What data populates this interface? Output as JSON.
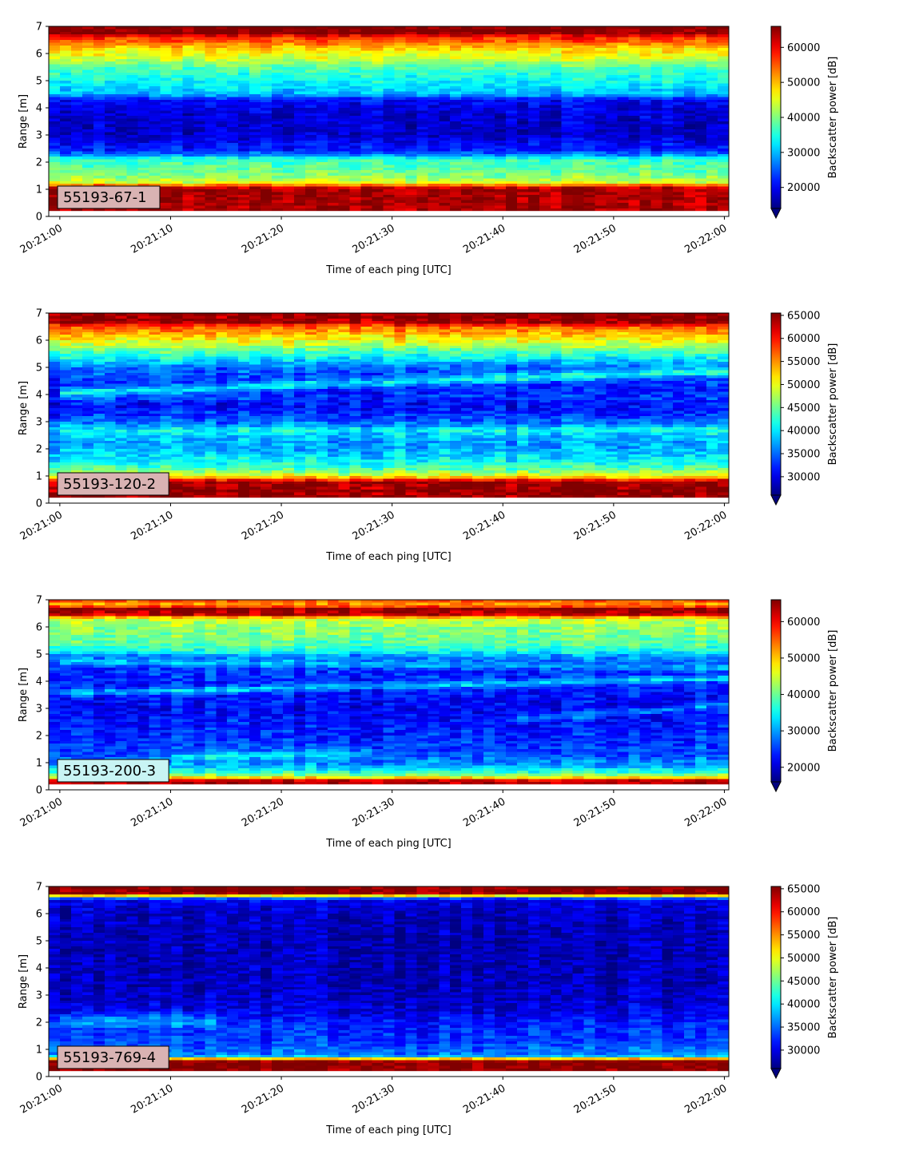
{
  "chart_data": [
    {
      "type": "heatmap",
      "label": "55193-67-1",
      "label_bg": "#d9b3b3",
      "xlabel": "Time of each ping [UTC]",
      "ylabel": "Range [m]",
      "colorbar_label": "Backscatter power [dB]",
      "x_ticks": [
        "20:21:00",
        "20:21:10",
        "20:21:20",
        "20:21:30",
        "20:21:40",
        "20:21:50",
        "20:22:00"
      ],
      "x_range_seconds": [
        -1,
        60.4
      ],
      "y_ticks": [
        0,
        1,
        2,
        3,
        4,
        5,
        6,
        7
      ],
      "ylim": [
        0,
        7
      ],
      "data_range_m": [
        0.2,
        7
      ],
      "vmin": 14000,
      "vmax": 66000,
      "cbar_ticks": [
        20000,
        30000,
        40000,
        50000,
        60000
      ],
      "colormap": "jet",
      "extend": "min",
      "noise": 2800,
      "profile": [
        [
          0.2,
          64000
        ],
        [
          1.0,
          64000
        ],
        [
          1.1,
          60000
        ],
        [
          1.2,
          46000
        ],
        [
          1.5,
          40000
        ],
        [
          1.8,
          38000
        ],
        [
          2.1,
          36000
        ],
        [
          2.25,
          28000
        ],
        [
          2.45,
          22000
        ],
        [
          3.0,
          18000
        ],
        [
          3.5,
          18000
        ],
        [
          4.0,
          19000
        ],
        [
          4.3,
          21000
        ],
        [
          4.5,
          30000
        ],
        [
          5.0,
          34000
        ],
        [
          5.5,
          38000
        ],
        [
          5.8,
          44000
        ],
        [
          6.0,
          46000
        ],
        [
          6.2,
          49000
        ],
        [
          6.4,
          54000
        ],
        [
          6.6,
          58000
        ],
        [
          6.75,
          66000
        ],
        [
          7.0,
          66000
        ]
      ],
      "streaks": []
    },
    {
      "type": "heatmap",
      "label": "55193-120-2",
      "label_bg": "#d9b3b3",
      "xlabel": "Time of each ping [UTC]",
      "ylabel": "Range [m]",
      "colorbar_label": "Backscatter power [dB]",
      "x_ticks": [
        "20:21:00",
        "20:21:10",
        "20:21:20",
        "20:21:30",
        "20:21:40",
        "20:21:50",
        "20:22:00"
      ],
      "x_range_seconds": [
        -1,
        60.4
      ],
      "y_ticks": [
        0,
        1,
        2,
        3,
        4,
        5,
        6,
        7
      ],
      "ylim": [
        0,
        7
      ],
      "data_range_m": [
        0.2,
        7
      ],
      "vmin": 26000,
      "vmax": 65500,
      "cbar_ticks": [
        30000,
        35000,
        40000,
        45000,
        50000,
        55000,
        60000,
        65000
      ],
      "colormap": "jet",
      "extend": "min",
      "noise": 2600,
      "profile": [
        [
          0.2,
          64500
        ],
        [
          0.8,
          64500
        ],
        [
          0.9,
          56000
        ],
        [
          1.0,
          50000
        ],
        [
          1.2,
          45000
        ],
        [
          1.5,
          41000
        ],
        [
          1.8,
          39000
        ],
        [
          2.1,
          37000
        ],
        [
          2.4,
          38000
        ],
        [
          2.7,
          41000
        ],
        [
          2.9,
          36000
        ],
        [
          3.2,
          33000
        ],
        [
          3.6,
          31000
        ],
        [
          3.9,
          33000
        ],
        [
          4.2,
          31500
        ],
        [
          4.6,
          33000
        ],
        [
          5.0,
          35000
        ],
        [
          5.3,
          40000
        ],
        [
          5.6,
          44000
        ],
        [
          5.9,
          49000
        ],
        [
          6.2,
          53000
        ],
        [
          6.5,
          57000
        ],
        [
          6.65,
          64000
        ],
        [
          7.0,
          65000
        ]
      ],
      "streaks": [
        [
          0,
          4.05,
          60,
          4.85,
          8000,
          0.12
        ]
      ]
    },
    {
      "type": "heatmap",
      "label": "55193-200-3",
      "label_bg": "#c8f4f4",
      "xlabel": "Time of each ping [UTC]",
      "ylabel": "Range [m]",
      "colorbar_label": "Backscatter power [dB]",
      "x_ticks": [
        "20:21:00",
        "20:21:10",
        "20:21:20",
        "20:21:30",
        "20:21:40",
        "20:21:50",
        "20:22:00"
      ],
      "x_range_seconds": [
        -1,
        60.4
      ],
      "y_ticks": [
        0,
        1,
        2,
        3,
        4,
        5,
        6,
        7
      ],
      "ylim": [
        0,
        7
      ],
      "data_range_m": [
        0.2,
        7
      ],
      "vmin": 16000,
      "vmax": 66000,
      "cbar_ticks": [
        20000,
        30000,
        40000,
        50000,
        60000
      ],
      "colormap": "jet",
      "extend": "min",
      "noise": 3200,
      "profile": [
        [
          0.2,
          64000
        ],
        [
          0.35,
          62000
        ],
        [
          0.45,
          48000
        ],
        [
          0.6,
          38000
        ],
        [
          0.9,
          30000
        ],
        [
          1.3,
          26000
        ],
        [
          2.0,
          24000
        ],
        [
          2.5,
          23000
        ],
        [
          3.0,
          22000
        ],
        [
          3.5,
          23000
        ],
        [
          4.0,
          24000
        ],
        [
          4.5,
          25000
        ],
        [
          4.95,
          30000
        ],
        [
          5.1,
          36000
        ],
        [
          5.5,
          40000
        ],
        [
          6.0,
          42000
        ],
        [
          6.3,
          45000
        ],
        [
          6.45,
          62000
        ],
        [
          6.65,
          65000
        ],
        [
          6.8,
          52000
        ],
        [
          7.0,
          56000
        ]
      ],
      "streaks": [
        [
          0,
          3.55,
          60,
          4.1,
          9000,
          0.08
        ],
        [
          10,
          1.2,
          28,
          1.35,
          7000,
          0.1
        ],
        [
          40,
          2.55,
          60,
          3.1,
          7000,
          0.08
        ],
        [
          0,
          4.7,
          60,
          4.5,
          5000,
          0.08
        ]
      ]
    },
    {
      "type": "heatmap",
      "label": "55193-769-4",
      "label_bg": "#d9b3b3",
      "xlabel": "Time of each ping [UTC]",
      "ylabel": "Range [m]",
      "colorbar_label": "Backscatter power [dB]",
      "x_ticks": [
        "20:21:00",
        "20:21:10",
        "20:21:20",
        "20:21:30",
        "20:21:40",
        "20:21:50",
        "20:22:00"
      ],
      "x_range_seconds": [
        -1,
        60.4
      ],
      "y_ticks": [
        0,
        1,
        2,
        3,
        4,
        5,
        6,
        7
      ],
      "ylim": [
        0,
        7
      ],
      "data_range_m": [
        0.2,
        7
      ],
      "vmin": 26000,
      "vmax": 65500,
      "cbar_ticks": [
        30000,
        35000,
        40000,
        45000,
        50000,
        55000,
        60000,
        65000
      ],
      "colormap": "jet",
      "extend": "min",
      "noise": 2200,
      "profile": [
        [
          0.2,
          65000
        ],
        [
          0.6,
          65000
        ],
        [
          0.7,
          40000
        ],
        [
          0.8,
          36000
        ],
        [
          1.2,
          33500
        ],
        [
          1.6,
          32500
        ],
        [
          2.0,
          32000
        ],
        [
          2.3,
          30000
        ],
        [
          3.0,
          28500
        ],
        [
          4.0,
          28000
        ],
        [
          5.0,
          28000
        ],
        [
          6.0,
          28500
        ],
        [
          6.5,
          30000
        ],
        [
          6.6,
          38000
        ],
        [
          6.7,
          64500
        ],
        [
          7.0,
          65500
        ]
      ],
      "streaks": [
        [
          0,
          2.05,
          14,
          2.05,
          5000,
          0.2
        ]
      ]
    }
  ]
}
